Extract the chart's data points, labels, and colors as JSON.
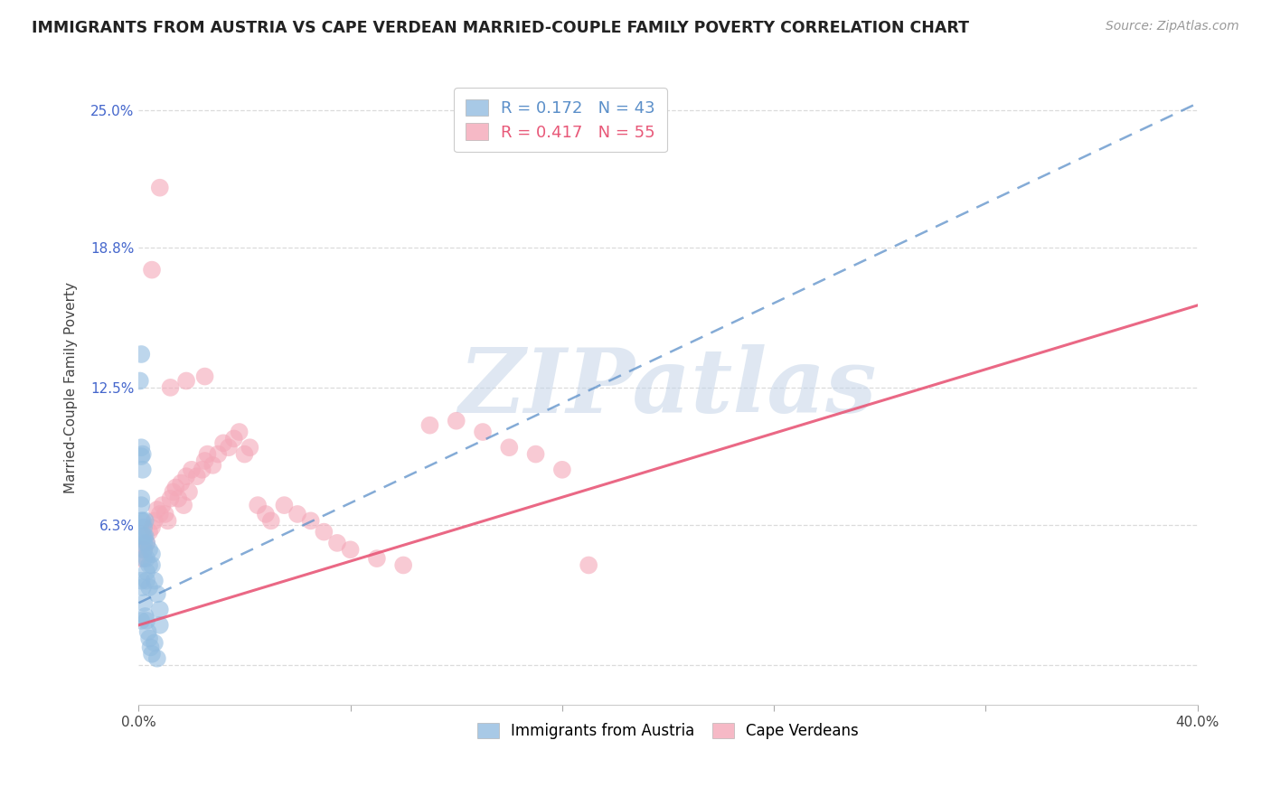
{
  "title": "IMMIGRANTS FROM AUSTRIA VS CAPE VERDEAN MARRIED-COUPLE FAMILY POVERTY CORRELATION CHART",
  "source": "Source: ZipAtlas.com",
  "ylabel": "Married-Couple Family Poverty",
  "xlim": [
    0.0,
    0.4
  ],
  "ylim": [
    -0.018,
    0.268
  ],
  "xticks": [
    0.0,
    0.08,
    0.16,
    0.24,
    0.32,
    0.4
  ],
  "xticklabels": [
    "0.0%",
    "",
    "",
    "",
    "",
    "40.0%"
  ],
  "ytick_positions": [
    0.0,
    0.063,
    0.125,
    0.188,
    0.25
  ],
  "ytick_labels": [
    "",
    "6.3%",
    "12.5%",
    "18.8%",
    "25.0%"
  ],
  "grid_color": "#d8d8d8",
  "background_color": "#ffffff",
  "watermark_text": "ZIPatlas",
  "watermark_color": "#c5d5e8",
  "austria_color": "#92bce0",
  "cape_verde_color": "#f4a8b8",
  "austria_line_color": "#5b8fc9",
  "cape_verde_line_color": "#e85878",
  "R_austria": 0.172,
  "N_austria": 43,
  "R_cape_verde": 0.417,
  "N_cape_verde": 55,
  "legend_label_austria": "Immigrants from Austria",
  "legend_label_cape_verde": "Cape Verdeans",
  "austria_line_x0": 0.0,
  "austria_line_y0": 0.028,
  "austria_line_x1": 0.4,
  "austria_line_y1": 0.253,
  "cape_verde_line_x0": 0.0,
  "cape_verde_line_y0": 0.018,
  "cape_verde_line_x1": 0.4,
  "cape_verde_line_y1": 0.162,
  "austria_x": [
    0.0005,
    0.001,
    0.001,
    0.001,
    0.001,
    0.001,
    0.001,
    0.0015,
    0.0015,
    0.0015,
    0.0015,
    0.002,
    0.002,
    0.002,
    0.002,
    0.002,
    0.0025,
    0.0025,
    0.003,
    0.003,
    0.003,
    0.003,
    0.004,
    0.004,
    0.004,
    0.005,
    0.005,
    0.006,
    0.007,
    0.008,
    0.001,
    0.001,
    0.0015,
    0.002,
    0.0025,
    0.003,
    0.0035,
    0.004,
    0.0045,
    0.005,
    0.006,
    0.007,
    0.008
  ],
  "austria_y": [
    0.128,
    0.14,
    0.098,
    0.094,
    0.075,
    0.072,
    0.065,
    0.095,
    0.088,
    0.065,
    0.058,
    0.062,
    0.058,
    0.055,
    0.052,
    0.048,
    0.065,
    0.058,
    0.055,
    0.048,
    0.042,
    0.038,
    0.052,
    0.045,
    0.035,
    0.05,
    0.045,
    0.038,
    0.032,
    0.025,
    0.038,
    0.02,
    0.035,
    0.028,
    0.022,
    0.02,
    0.015,
    0.012,
    0.008,
    0.005,
    0.01,
    0.003,
    0.018
  ],
  "cape_verde_x": [
    0.001,
    0.002,
    0.003,
    0.004,
    0.005,
    0.006,
    0.007,
    0.008,
    0.009,
    0.01,
    0.011,
    0.012,
    0.013,
    0.014,
    0.015,
    0.016,
    0.017,
    0.018,
    0.019,
    0.02,
    0.022,
    0.024,
    0.025,
    0.026,
    0.028,
    0.03,
    0.032,
    0.034,
    0.036,
    0.038,
    0.04,
    0.042,
    0.045,
    0.048,
    0.05,
    0.055,
    0.06,
    0.065,
    0.07,
    0.075,
    0.08,
    0.09,
    0.1,
    0.11,
    0.12,
    0.13,
    0.14,
    0.15,
    0.16,
    0.17,
    0.005,
    0.008,
    0.012,
    0.018,
    0.025
  ],
  "cape_verde_y": [
    0.048,
    0.052,
    0.055,
    0.06,
    0.062,
    0.065,
    0.07,
    0.068,
    0.072,
    0.068,
    0.065,
    0.075,
    0.078,
    0.08,
    0.075,
    0.082,
    0.072,
    0.085,
    0.078,
    0.088,
    0.085,
    0.088,
    0.092,
    0.095,
    0.09,
    0.095,
    0.1,
    0.098,
    0.102,
    0.105,
    0.095,
    0.098,
    0.072,
    0.068,
    0.065,
    0.072,
    0.068,
    0.065,
    0.06,
    0.055,
    0.052,
    0.048,
    0.045,
    0.108,
    0.11,
    0.105,
    0.098,
    0.095,
    0.088,
    0.045,
    0.178,
    0.215,
    0.125,
    0.128,
    0.13
  ]
}
